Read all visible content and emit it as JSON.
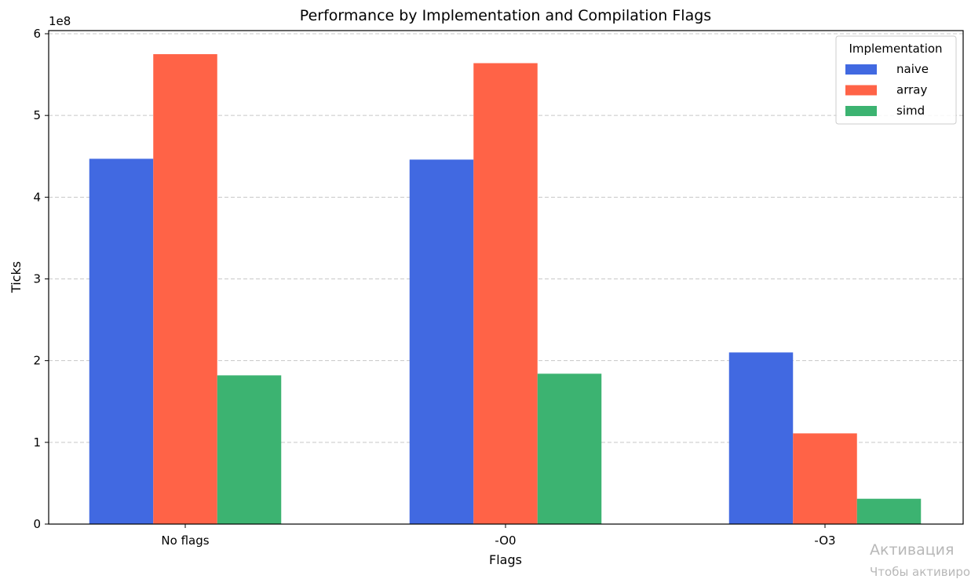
{
  "chart_data": {
    "type": "bar",
    "title": "Performance by Implementation and Compilation Flags",
    "xlabel": "Flags",
    "ylabel": "Ticks",
    "y_multiplier_label": "1e8",
    "ylim": [
      0,
      6
    ],
    "yticks": [
      0,
      1,
      2,
      3,
      4,
      5,
      6
    ],
    "categories": [
      "No flags",
      "-O0",
      "-O3"
    ],
    "series": [
      {
        "name": "naive",
        "color": "#4169E1",
        "values": [
          4.47,
          4.46,
          2.1
        ]
      },
      {
        "name": "array",
        "color": "#FF6347",
        "values": [
          5.75,
          5.64,
          1.11
        ]
      },
      {
        "name": "simd",
        "color": "#3CB371",
        "values": [
          1.82,
          1.84,
          0.31
        ]
      }
    ],
    "legend": {
      "title": "Implementation",
      "placement": "top-right"
    },
    "grid": {
      "axis": "y",
      "style": "dashed"
    }
  },
  "watermark": {
    "line1": "Активация",
    "line2": "Чтобы активиро"
  }
}
